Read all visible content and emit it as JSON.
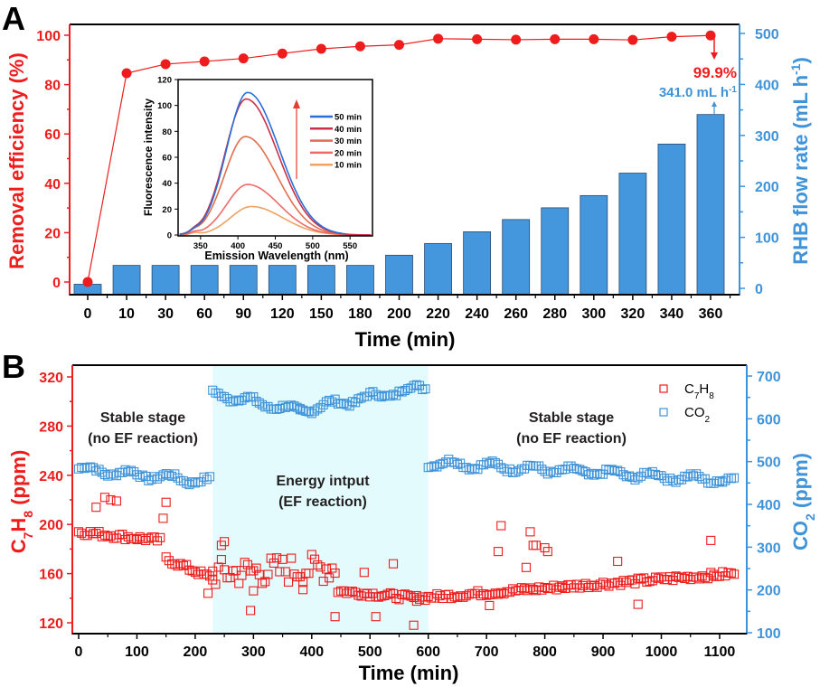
{
  "colors": {
    "red": "#ee1c1c",
    "blue": "#3f93d9",
    "bar_fill": "#4597dd",
    "bar_stroke": "#2a4a6e",
    "black": "#000000",
    "ef_region": "#e3fbfd",
    "curve_50": "#2a6fd6",
    "curve_40": "#cc2e49",
    "curve_30": "#e36f4a",
    "curve_20": "#ee6a6a",
    "curve_10": "#f0a260"
  },
  "chart_data": [
    {
      "panel_label": "A",
      "type": "bar",
      "title": "",
      "xlabel": "Time (min)",
      "ylabel_left": "Removal efficiency (%)",
      "ylabel_right": "RHB flow rate (mL h-1)",
      "categories": [
        "0",
        "10",
        "30",
        "60",
        "90",
        "120",
        "150",
        "180",
        "200",
        "220",
        "240",
        "260",
        "280",
        "300",
        "320",
        "340",
        "360"
      ],
      "ylim_left": [
        -5,
        105
      ],
      "yticks_left": [
        0,
        20,
        40,
        60,
        80,
        100
      ],
      "ylim_right": [
        -5,
        510
      ],
      "yticks_right": [
        0,
        100,
        200,
        300,
        400,
        500
      ],
      "series": [
        {
          "name": "RHB flow rate",
          "type": "bar",
          "axis": "right",
          "values": [
            8,
            45,
            45,
            45,
            45,
            45,
            45,
            45,
            65,
            88,
            111,
            135,
            158,
            182,
            226,
            283,
            341
          ]
        },
        {
          "name": "Removal efficiency",
          "type": "line",
          "axis": "left",
          "values": [
            0,
            84.6,
            88.3,
            89.4,
            90.6,
            92.6,
            94.5,
            95.5,
            96.1,
            98.6,
            98.4,
            98.2,
            98.4,
            98.4,
            98.1,
            99.4,
            99.9
          ]
        }
      ],
      "annotations": [
        {
          "text": "99.9%",
          "color": "red",
          "target_category": "360"
        },
        {
          "text": "341.0 mL h",
          "superscript": "-1",
          "color": "blue",
          "target_category": "360"
        }
      ],
      "inset": {
        "type": "line",
        "xlabel": "Emission Wavelength (nm)",
        "ylabel": "Fluorescence intensity",
        "xlim": [
          320,
          580
        ],
        "ylim": [
          0,
          120
        ],
        "xticks": [
          350,
          400,
          450,
          500,
          550
        ],
        "yticks": [
          0,
          20,
          40,
          60,
          80,
          100,
          120
        ],
        "legend_position": "right",
        "series": [
          {
            "name": "50 min",
            "peak_x": 413,
            "peak_y": 110,
            "color_key": "curve_50"
          },
          {
            "name": "40 min",
            "peak_x": 411,
            "peak_y": 105,
            "color_key": "curve_40"
          },
          {
            "name": "30 min",
            "peak_x": 410,
            "peak_y": 76,
            "color_key": "curve_30"
          },
          {
            "name": "20 min",
            "peak_x": 413,
            "peak_y": 39,
            "color_key": "curve_20"
          },
          {
            "name": "10 min",
            "peak_x": 418,
            "peak_y": 22,
            "color_key": "curve_10"
          }
        ]
      }
    },
    {
      "panel_label": "B",
      "type": "scatter",
      "title": "",
      "xlabel": "Time (min)",
      "ylabel_left": "C7H8 (ppm)",
      "ylabel_right": "CO2 (ppm)",
      "xlim": [
        -10,
        1130
      ],
      "xticks": [
        0,
        100,
        200,
        300,
        400,
        500,
        600,
        700,
        800,
        900,
        1000,
        1100
      ],
      "ylim_left": [
        110,
        330
      ],
      "yticks_left": [
        120,
        160,
        200,
        240,
        280,
        320
      ],
      "ylim_right": [
        100,
        720
      ],
      "yticks_right": [
        100,
        200,
        300,
        400,
        500,
        600,
        700
      ],
      "legend_position": "top-right",
      "legend": [
        {
          "label": "C7H8",
          "color_key": "red"
        },
        {
          "label": "CO2",
          "color_key": "blue"
        }
      ],
      "shaded_region": {
        "x_from": 230,
        "x_to": 600,
        "label": "Energy intput (EF reaction)"
      },
      "text_annotations": [
        {
          "line1": "Stable stage",
          "line2": "(no EF reaction)",
          "x_center": 115
        },
        {
          "line1": "Energy intput",
          "line2": "(EF reaction)",
          "x_center": 415
        },
        {
          "line1": "Stable stage",
          "line2": "(no EF reaction)",
          "x_center": 800
        }
      ],
      "series_trends": [
        {
          "name": "C7H8",
          "axis": "left",
          "segments": [
            {
              "x_from": 0,
              "x_to": 140,
              "y_from": 194,
              "y_to": 187
            },
            {
              "x_from": 150,
              "x_to": 230,
              "y_from": 172,
              "y_to": 156
            },
            {
              "x_from": 230,
              "x_to": 440,
              "y_from": 160,
              "y_to": 165,
              "scatter": "high"
            },
            {
              "x_from": 445,
              "x_to": 580,
              "y_from": 146,
              "y_to": 140
            },
            {
              "x_from": 580,
              "x_to": 1125,
              "y_from": 140,
              "y_to": 160
            }
          ],
          "outliers": [
            [
              30,
              214
            ],
            [
              45,
              222
            ],
            [
              55,
              220
            ],
            [
              65,
              219
            ],
            [
              145,
              205
            ],
            [
              150,
              218
            ],
            [
              222,
              144
            ],
            [
              245,
              183
            ],
            [
              250,
              186
            ],
            [
              295,
              130
            ],
            [
              300,
              146
            ],
            [
              385,
              147
            ],
            [
              440,
              125
            ],
            [
              490,
              161
            ],
            [
              510,
              125
            ],
            [
              540,
              168
            ],
            [
              575,
              118
            ],
            [
              705,
              134
            ],
            [
              720,
              178
            ],
            [
              725,
              199
            ],
            [
              768,
              165
            ],
            [
              775,
              194
            ],
            [
              780,
              183
            ],
            [
              785,
              183
            ],
            [
              800,
              181
            ],
            [
              805,
              178
            ],
            [
              830,
              150
            ],
            [
              925,
              170
            ],
            [
              960,
              135
            ],
            [
              1025,
              158
            ],
            [
              1085,
              187
            ],
            [
              1090,
              158
            ]
          ]
        },
        {
          "name": "CO2",
          "axis": "right",
          "segments": [
            {
              "x_from": 0,
              "x_to": 225,
              "y_from": 483,
              "y_to": 453
            },
            {
              "x_from": 230,
              "x_to": 380,
              "y_from": 660,
              "y_to": 617
            },
            {
              "x_from": 380,
              "x_to": 595,
              "y_from": 620,
              "y_to": 675
            },
            {
              "x_from": 600,
              "x_to": 1125,
              "y_from": 498,
              "y_to": 455
            }
          ]
        }
      ]
    }
  ]
}
